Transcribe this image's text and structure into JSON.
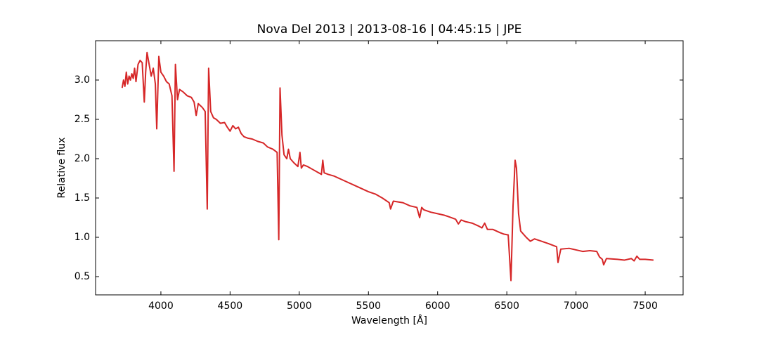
{
  "chart_data": {
    "type": "line",
    "title": "Nova Del 2013 | 2013-08-16 | 04:45:15 | JPE",
    "xlabel": "Wavelength [Å]",
    "ylabel": "Relative flux",
    "xlim": [
      3528,
      7774
    ],
    "ylim": [
      0.268,
      3.5
    ],
    "xticks": [
      4000,
      4500,
      5000,
      5500,
      6000,
      6500,
      7000,
      7500
    ],
    "yticks": [
      {
        "value": 0.5,
        "label": "0.5"
      },
      {
        "value": 1,
        "label": "1.0"
      },
      {
        "value": 1.5,
        "label": "1.5"
      },
      {
        "value": 2,
        "label": "2.0"
      },
      {
        "value": 2.5,
        "label": "2.5"
      },
      {
        "value": 3,
        "label": "3.0"
      }
    ],
    "series": [
      {
        "name": "spectrum",
        "color": "#d62728",
        "x": [
          3720,
          3730,
          3740,
          3750,
          3760,
          3770,
          3780,
          3790,
          3800,
          3810,
          3820,
          3835,
          3850,
          3865,
          3880,
          3890,
          3900,
          3915,
          3930,
          3945,
          3960,
          3970,
          3985,
          4000,
          4020,
          4040,
          4060,
          4080,
          4095,
          4105,
          4120,
          4135,
          4160,
          4190,
          4220,
          4240,
          4255,
          4270,
          4300,
          4320,
          4335,
          4345,
          4360,
          4380,
          4400,
          4430,
          4460,
          4480,
          4500,
          4520,
          4540,
          4560,
          4580,
          4600,
          4630,
          4660,
          4700,
          4740,
          4770,
          4810,
          4840,
          4852,
          4861,
          4875,
          4890,
          4910,
          4922,
          4935,
          4960,
          4990,
          5005,
          5015,
          5030,
          5060,
          5100,
          5140,
          5160,
          5170,
          5180,
          5210,
          5250,
          5300,
          5350,
          5400,
          5450,
          5500,
          5550,
          5600,
          5650,
          5660,
          5680,
          5750,
          5800,
          5850,
          5870,
          5885,
          5900,
          5950,
          6000,
          6050,
          6100,
          6130,
          6150,
          6170,
          6200,
          6250,
          6300,
          6320,
          6340,
          6360,
          6400,
          6450,
          6480,
          6510,
          6530,
          6545,
          6560,
          6570,
          6585,
          6600,
          6640,
          6670,
          6700,
          6750,
          6800,
          6860,
          6870,
          6890,
          6950,
          7000,
          7050,
          7100,
          7150,
          7170,
          7190,
          7200,
          7220,
          7300,
          7350,
          7400,
          7420,
          7440,
          7460,
          7500,
          7560
        ],
        "values": [
          2.9,
          3.0,
          2.92,
          3.1,
          2.95,
          3.05,
          3.0,
          3.08,
          3.02,
          3.15,
          2.98,
          3.2,
          3.25,
          3.22,
          2.72,
          3.1,
          3.35,
          3.2,
          3.05,
          3.15,
          2.95,
          2.38,
          3.3,
          3.1,
          3.05,
          2.98,
          2.95,
          2.8,
          1.84,
          3.2,
          2.75,
          2.88,
          2.85,
          2.8,
          2.78,
          2.72,
          2.55,
          2.7,
          2.65,
          2.6,
          1.36,
          3.15,
          2.6,
          2.52,
          2.5,
          2.45,
          2.46,
          2.4,
          2.35,
          2.42,
          2.38,
          2.4,
          2.32,
          2.28,
          2.26,
          2.25,
          2.22,
          2.2,
          2.15,
          2.12,
          2.08,
          0.97,
          2.9,
          2.3,
          2.05,
          2.0,
          2.12,
          2.0,
          1.95,
          1.9,
          2.08,
          1.88,
          1.92,
          1.9,
          1.86,
          1.82,
          1.8,
          1.98,
          1.82,
          1.8,
          1.78,
          1.74,
          1.7,
          1.66,
          1.62,
          1.58,
          1.55,
          1.5,
          1.44,
          1.36,
          1.46,
          1.44,
          1.4,
          1.38,
          1.25,
          1.38,
          1.35,
          1.32,
          1.3,
          1.28,
          1.25,
          1.23,
          1.17,
          1.22,
          1.2,
          1.18,
          1.14,
          1.12,
          1.18,
          1.1,
          1.1,
          1.06,
          1.04,
          1.03,
          0.45,
          1.4,
          1.98,
          1.88,
          1.3,
          1.08,
          1.0,
          0.95,
          0.98,
          0.95,
          0.92,
          0.88,
          0.68,
          0.85,
          0.86,
          0.84,
          0.82,
          0.83,
          0.82,
          0.75,
          0.72,
          0.65,
          0.73,
          0.72,
          0.71,
          0.73,
          0.7,
          0.76,
          0.72,
          0.72,
          0.71
        ]
      }
    ]
  }
}
